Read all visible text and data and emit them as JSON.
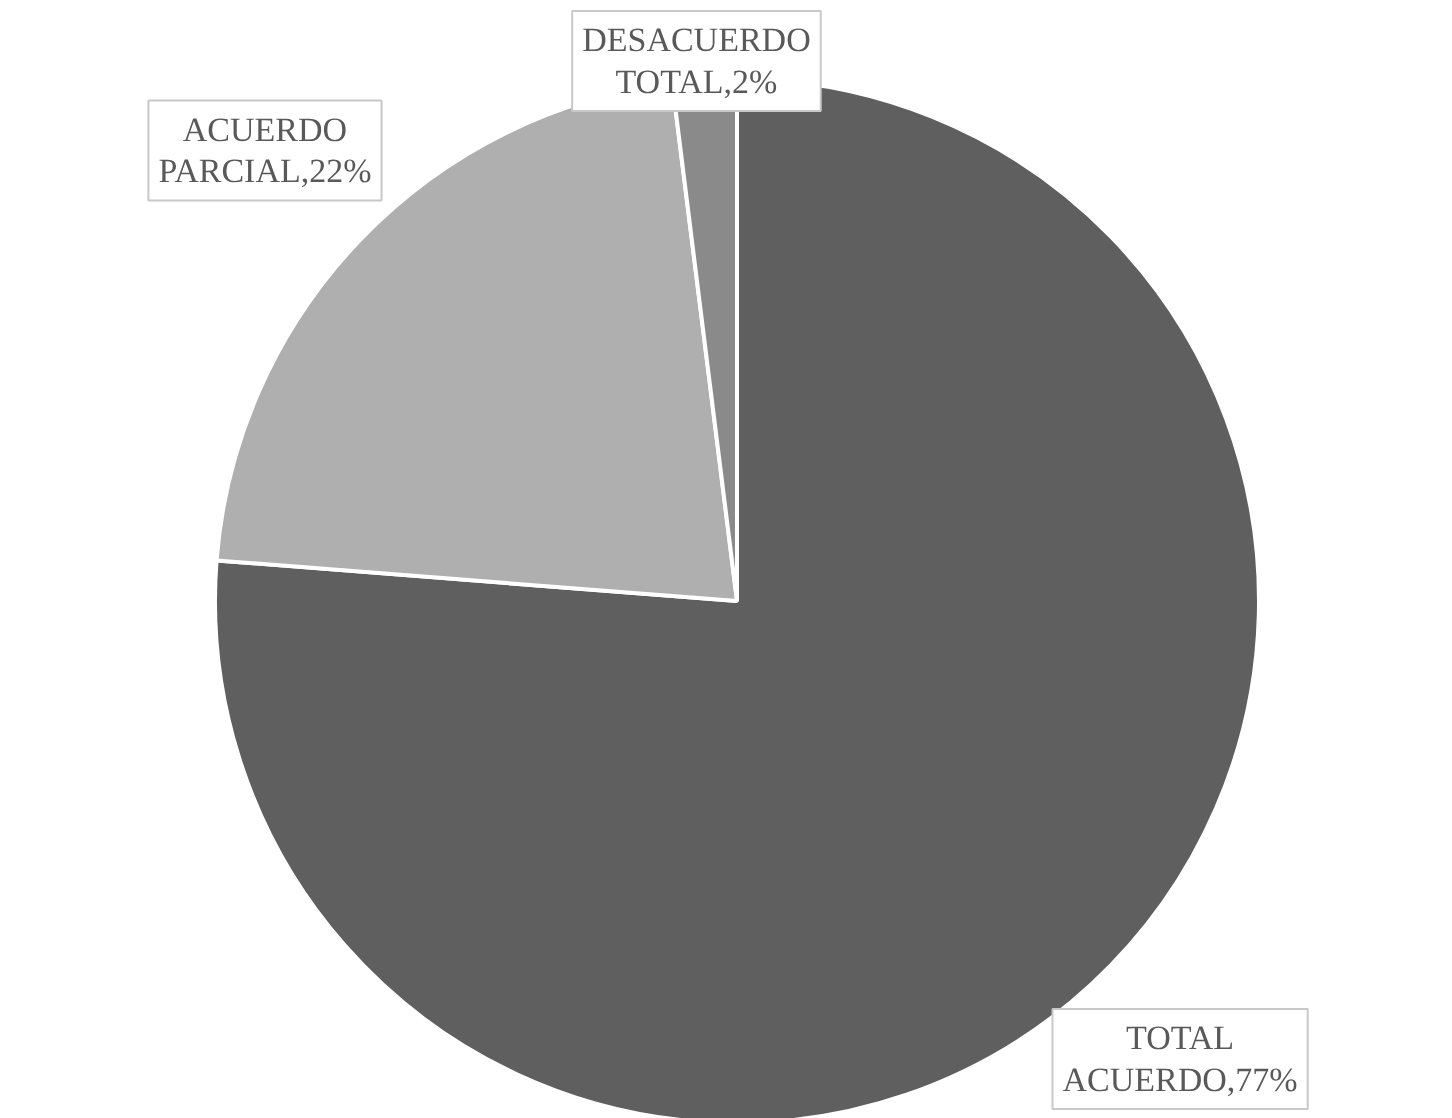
{
  "chart_data": {
    "type": "pie",
    "categories": [
      "TOTAL ACUERDO",
      "ACUERDO PARCIAL",
      "DESACUERDO TOTAL"
    ],
    "values": [
      77,
      22,
      2
    ],
    "colors": [
      "#5f5f5f",
      "#afafaf",
      "#8a8a8a"
    ],
    "value_labels": [
      "77%",
      "22%",
      "2%"
    ]
  }
}
